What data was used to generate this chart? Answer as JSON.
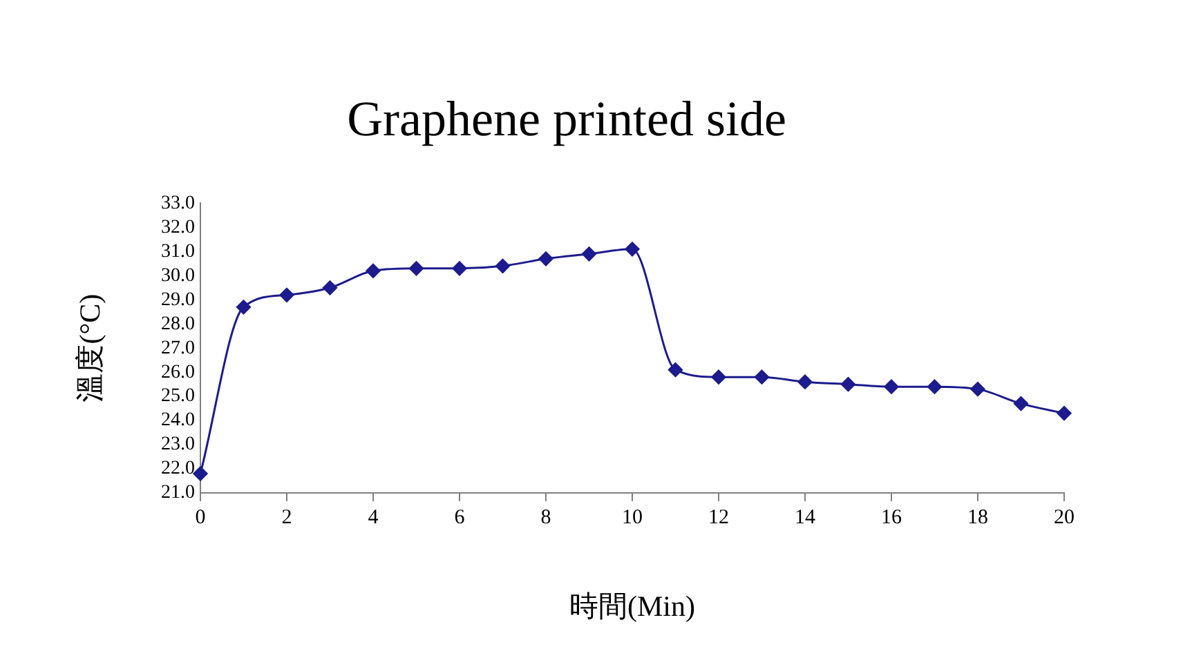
{
  "chart_data": {
    "type": "line",
    "title": "Graphene printed side",
    "xlabel": "時間(Min)",
    "ylabel": "溫度(°C)",
    "x": [
      0,
      1,
      2,
      3,
      4,
      5,
      6,
      7,
      8,
      9,
      10,
      11,
      12,
      13,
      14,
      15,
      16,
      17,
      18,
      19,
      20
    ],
    "series": [
      {
        "color": "#1c1c8e",
        "values": [
          21.8,
          28.7,
          29.2,
          29.5,
          30.2,
          30.3,
          30.3,
          30.4,
          30.7,
          30.9,
          31.1,
          26.1,
          25.8,
          25.8,
          25.6,
          25.5,
          25.4,
          25.4,
          25.3,
          24.7,
          24.3
        ]
      }
    ],
    "xlim": [
      0,
      20
    ],
    "xticks": [
      0,
      2,
      4,
      6,
      8,
      10,
      12,
      14,
      16,
      18,
      20
    ],
    "ylim": [
      21,
      33
    ],
    "yticks": [
      {
        "value": 21,
        "label": "21.0"
      },
      {
        "value": 22,
        "label": "22.0"
      },
      {
        "value": 23,
        "label": "23.0"
      },
      {
        "value": 24,
        "label": "24.0"
      },
      {
        "value": 25,
        "label": "25.0"
      },
      {
        "value": 26,
        "label": "26.0"
      },
      {
        "value": 27,
        "label": "27.0"
      },
      {
        "value": 28,
        "label": "28.0"
      },
      {
        "value": 29,
        "label": "29.0"
      },
      {
        "value": 30,
        "label": "30.0"
      },
      {
        "value": 31,
        "label": "31.0"
      },
      {
        "value": 32,
        "label": "32.0"
      },
      {
        "value": 33,
        "label": "33.0"
      }
    ],
    "grid": false,
    "legend": false,
    "marker": "diamond",
    "line_style": "solid"
  }
}
